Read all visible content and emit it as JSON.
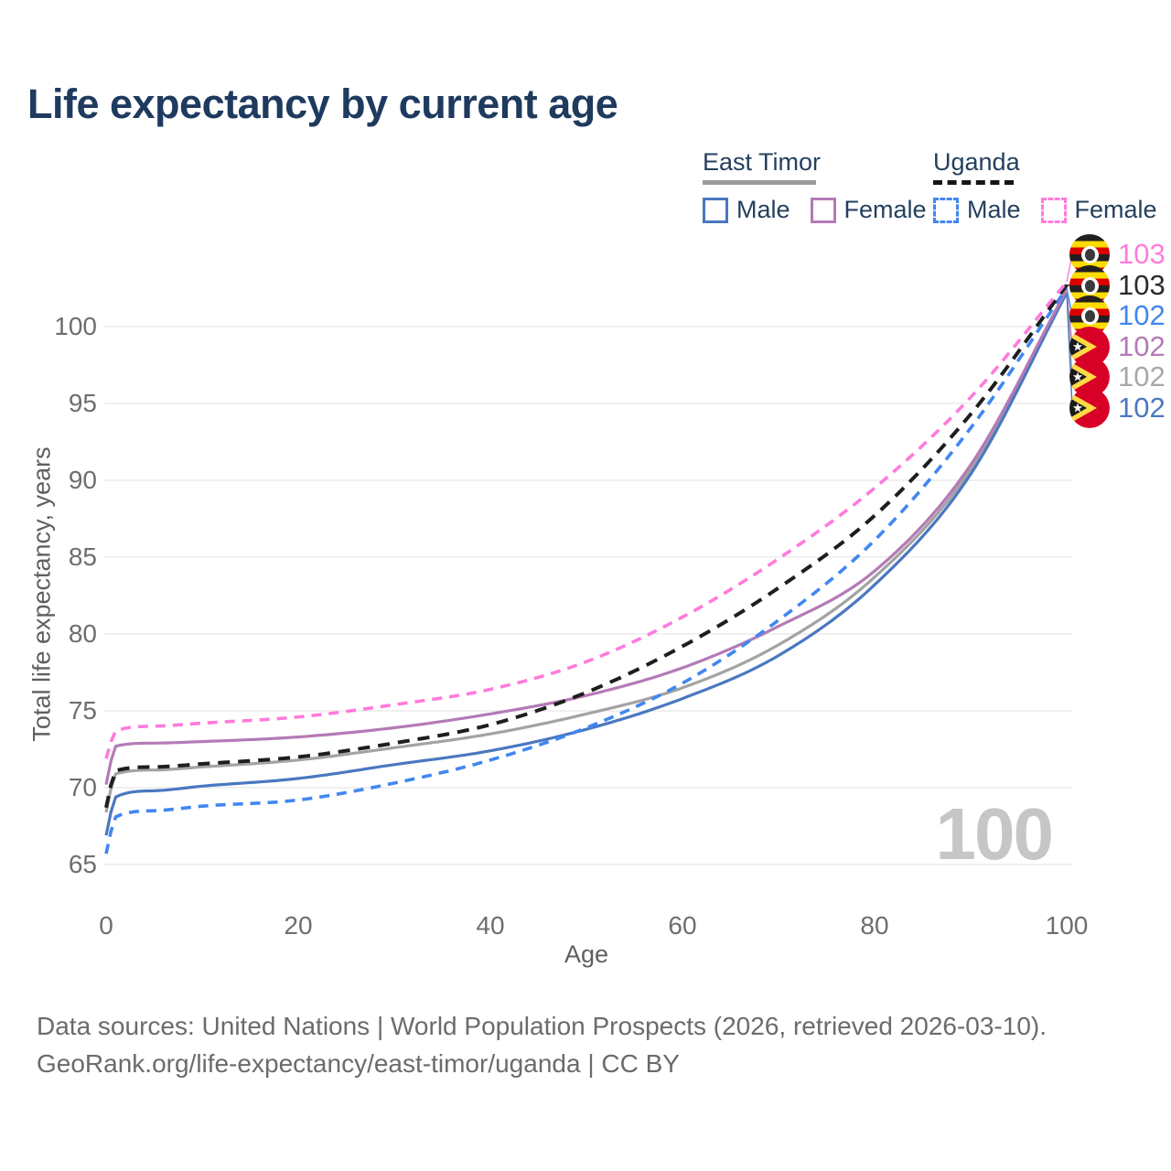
{
  "title": "Life expectancy by current age",
  "legend": {
    "groups": [
      {
        "name": "East Timor",
        "line_style": "solid",
        "underline_color": "#9c9c9c",
        "items": [
          {
            "label": "Male",
            "color": "#4a78c0"
          },
          {
            "label": "Female",
            "color": "#b47ab6"
          }
        ]
      },
      {
        "name": "Uganda",
        "line_style": "dashed",
        "underline_color": "#161616",
        "items": [
          {
            "label": "Male",
            "color": "#4187f0"
          },
          {
            "label": "Female",
            "color": "#ff7bdc"
          }
        ]
      }
    ]
  },
  "axes": {
    "x": {
      "label": "Age",
      "ticks": [
        0,
        20,
        40,
        60,
        80,
        100
      ],
      "range": [
        0,
        100
      ]
    },
    "y": {
      "label": "Total life expectancy, years",
      "ticks": [
        65,
        70,
        75,
        80,
        85,
        90,
        95,
        100
      ],
      "range": [
        63.5,
        104.5
      ]
    }
  },
  "watermark": "100",
  "right_labels": [
    {
      "value": "103",
      "country": "Uganda",
      "series": "Female",
      "color": "#ff7bdc"
    },
    {
      "value": "103",
      "country": "Uganda",
      "series": "Total",
      "color": "#2b2b2b"
    },
    {
      "value": "102",
      "country": "Uganda",
      "series": "Male",
      "color": "#4187f0"
    },
    {
      "value": "102",
      "country": "East Timor",
      "series": "Female",
      "color": "#b47ab6"
    },
    {
      "value": "102",
      "country": "East Timor",
      "series": "Total",
      "color": "#a8a8a8"
    },
    {
      "value": "102",
      "country": "East Timor",
      "series": "Male",
      "color": "#4a78c0"
    }
  ],
  "footer": {
    "line1": "Data sources: United Nations | World Population Prospects (2026, retrieved 2026-03-10).",
    "line2": "GeoRank.org/life-expectancy/east-timor/uganda | CC BY"
  },
  "chart_data": {
    "type": "line",
    "title": "Life expectancy by current age",
    "xlabel": "Age",
    "ylabel": "Total life expectancy, years",
    "xlim": [
      0,
      100
    ],
    "ylim": [
      63.5,
      104.5
    ],
    "grid": "horizontal",
    "legend_position": "top-right",
    "x_anchors": [
      0,
      1,
      5,
      10,
      20,
      30,
      40,
      50,
      60,
      70,
      80,
      90,
      100
    ],
    "series": [
      {
        "name": "Uganda Female",
        "dash": true,
        "color": "#ff7bdc",
        "values": [
          71.9,
          73.7,
          74.0,
          74.2,
          74.6,
          75.4,
          76.4,
          78.2,
          81.1,
          84.9,
          89.5,
          95.4,
          102.9
        ]
      },
      {
        "name": "Uganda Total",
        "dash": true,
        "color": "#1e1e1e",
        "values": [
          68.7,
          71.1,
          71.35,
          71.55,
          72.0,
          72.9,
          74.1,
          76.2,
          79.2,
          83.0,
          87.7,
          94.3,
          102.7
        ]
      },
      {
        "name": "Uganda Male",
        "dash": true,
        "color": "#4187f0",
        "values": [
          65.7,
          68.1,
          68.5,
          68.8,
          69.2,
          70.3,
          71.8,
          73.9,
          76.8,
          80.9,
          86.1,
          93.4,
          102.5
        ]
      },
      {
        "name": "East Timor Female",
        "dash": false,
        "color": "#b47ab6",
        "values": [
          70.2,
          72.7,
          72.9,
          73.0,
          73.3,
          73.9,
          74.8,
          76.0,
          77.8,
          80.5,
          84.1,
          91.0,
          102.4
        ]
      },
      {
        "name": "East Timor Total",
        "dash": false,
        "color": "#a3a3a3",
        "values": [
          68.4,
          70.9,
          71.15,
          71.35,
          71.8,
          72.6,
          73.5,
          74.8,
          76.5,
          79.3,
          83.7,
          90.7,
          102.3
        ]
      },
      {
        "name": "East Timor Male",
        "dash": false,
        "color": "#4a78c0",
        "values": [
          66.9,
          69.4,
          69.8,
          70.1,
          70.6,
          71.5,
          72.4,
          73.8,
          75.8,
          78.6,
          83.2,
          90.4,
          102.2
        ]
      }
    ]
  }
}
